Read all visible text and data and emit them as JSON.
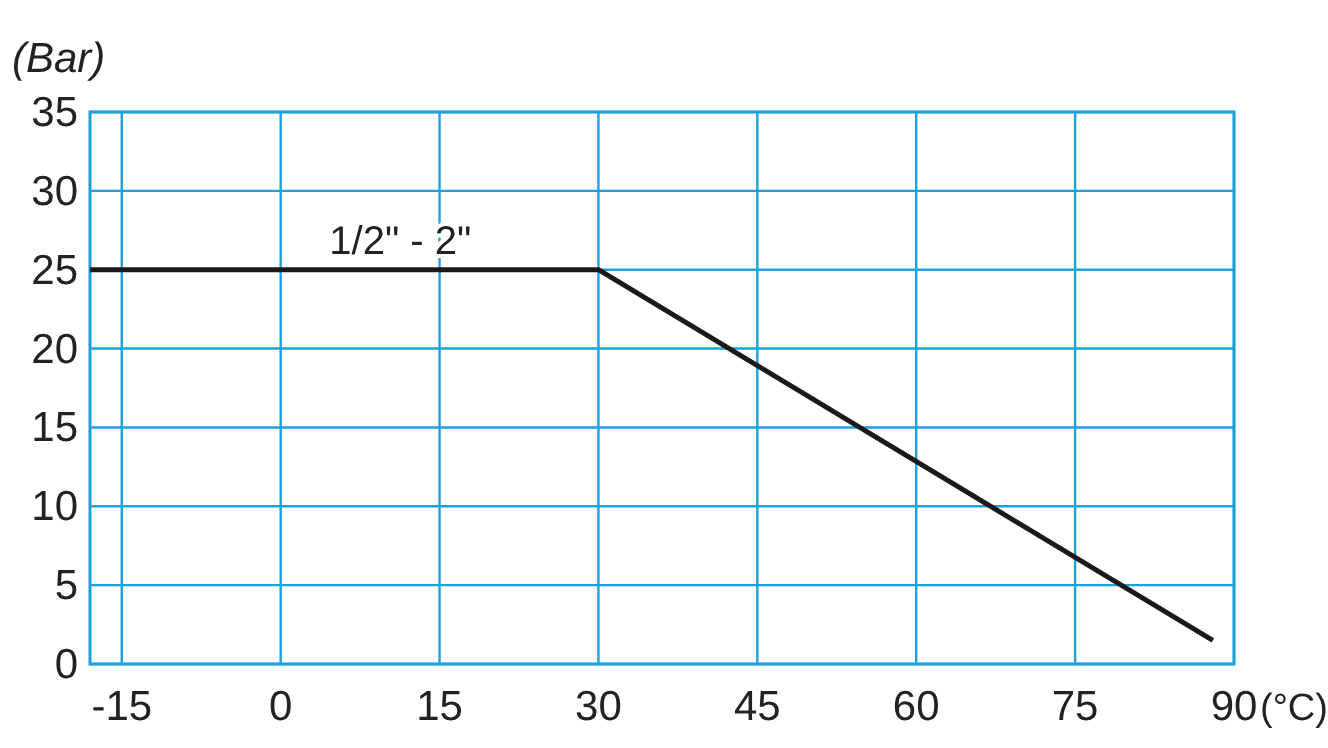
{
  "chart_data": {
    "type": "line",
    "xlabel": "(°C)",
    "ylabel": "(Bar)",
    "xlim": [
      -18,
      90
    ],
    "xticks": [
      -15,
      0,
      15,
      30,
      45,
      60,
      75,
      90
    ],
    "ylim": [
      0,
      35
    ],
    "yticks": [
      0,
      5,
      10,
      15,
      20,
      25,
      30,
      35
    ],
    "grid": true,
    "series": [
      {
        "name": "1/2\" - 2\"",
        "color": "#1a1a1a",
        "x": [
          -18,
          30,
          88
        ],
        "values": [
          25,
          25,
          1.5
        ]
      }
    ]
  }
}
